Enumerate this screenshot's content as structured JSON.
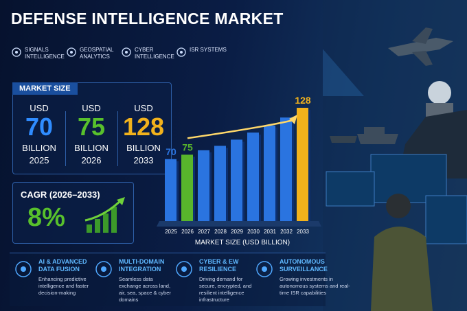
{
  "title": "DEFENSE INTELLIGENCE MARKET",
  "segments": [
    "SIGNALS INTELLIGENCE",
    "GEOSPATIAL ANALYTICS",
    "CYBER INTELLIGENCE",
    "ISR SYSTEMS"
  ],
  "market_size": {
    "heading": "MARKET SIZE",
    "items": [
      {
        "currency": "USD",
        "value": "70",
        "unit": "BILLION",
        "year": "2025"
      },
      {
        "currency": "USD",
        "value": "75",
        "unit": "BILLION",
        "year": "2026"
      },
      {
        "currency": "USD",
        "value": "128",
        "unit": "BILLION",
        "year": "2033"
      }
    ]
  },
  "cagr": {
    "label": "CAGR (2026–2033)",
    "value": "8%"
  },
  "chart_data": {
    "type": "bar",
    "x_label": "MARKET SIZE (USD BILLION)",
    "categories": [
      "2025",
      "2026",
      "2027",
      "2028",
      "2029",
      "2030",
      "2031",
      "2032",
      "2033"
    ],
    "values": [
      70,
      75,
      80,
      85,
      92,
      100,
      108,
      117,
      128
    ],
    "colors": [
      "#2a74e0",
      "#58b52c",
      "#2a74e0",
      "#2a74e0",
      "#2a74e0",
      "#2a74e0",
      "#2a74e0",
      "#2a74e0",
      "#f2b21c"
    ]
  },
  "features": [
    {
      "title": "AI & ADVANCED DATA FUSION",
      "text": "Enhancing predictive intelligence and faster decision-making"
    },
    {
      "title": "MULTI-DOMAIN INTEGRATION",
      "text": "Seamless data exchange across land, air, sea, space & cyber domains"
    },
    {
      "title": "CYBER & EW RESILIENCE",
      "text": "Driving demand for secure, encrypted, and resilient intelligence infrastructure"
    },
    {
      "title": "AUTONOMOUS SURVEILLANCE",
      "text": "Growing investments in autonomous systems and real-time ISR capabilities"
    }
  ]
}
